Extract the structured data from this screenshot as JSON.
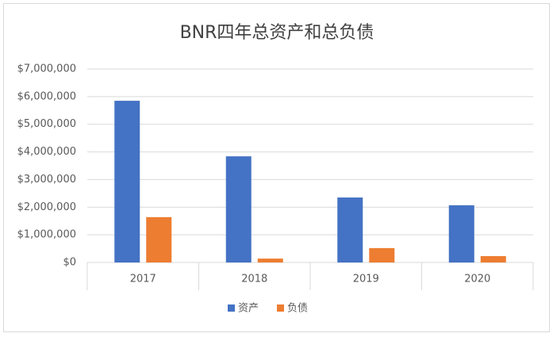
{
  "chart_data": {
    "type": "bar",
    "title": "BNR四年总资产和总负债",
    "categories": [
      "2017",
      "2018",
      "2019",
      "2020"
    ],
    "series": [
      {
        "name": "资产",
        "color": "#4472c4",
        "values": [
          5850000,
          3840000,
          2350000,
          2070000
        ]
      },
      {
        "name": "负债",
        "color": "#ed7d31",
        "values": [
          1640000,
          140000,
          520000,
          230000
        ]
      }
    ],
    "ylim": [
      0,
      7000000
    ],
    "yticks": [
      {
        "value": 0,
        "label": "$0"
      },
      {
        "value": 1000000,
        "label": "$1,000,000"
      },
      {
        "value": 2000000,
        "label": "$2,000,000"
      },
      {
        "value": 3000000,
        "label": "$3,000,000"
      },
      {
        "value": 4000000,
        "label": "$4,000,000"
      },
      {
        "value": 5000000,
        "label": "$5,000,000"
      },
      {
        "value": 6000000,
        "label": "$6,000,000"
      },
      {
        "value": 7000000,
        "label": "$7,000,000"
      }
    ],
    "grid": true,
    "legend": "bottom"
  }
}
